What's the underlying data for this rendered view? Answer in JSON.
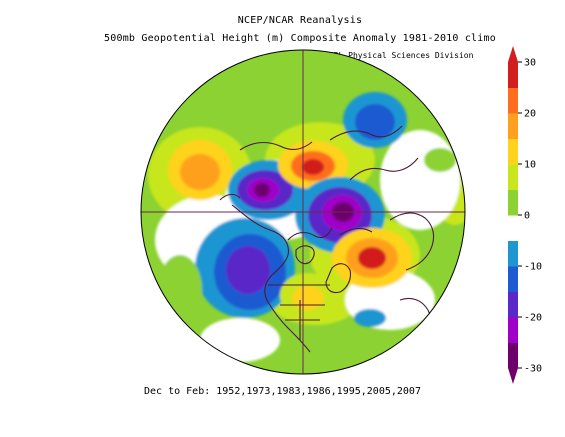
{
  "header": {
    "title_line1": "NCEP/NCAR Reanalysis",
    "title_line2": "500mb Geopotential Height (m) Composite Anomaly 1981-2010 climo",
    "credit": "NOAA/ESRL Physical Sciences Division"
  },
  "footer": {
    "caption": "Dec to Feb: 1952,1973,1983,1986,1995,2005,2007"
  },
  "colorbar": {
    "tick_labels": [
      "30",
      "20",
      "10",
      "0",
      "-10",
      "-20",
      "-30"
    ],
    "units": "m",
    "range": [
      -30,
      30
    ],
    "colors": [
      "#6e006e",
      "#a000c8",
      "#5a28c8",
      "#1e5ad2",
      "#1e96d2",
      "#ffffff",
      "#8cd232",
      "#c8e61e",
      "#ffd21e",
      "#ffa01e",
      "#ff6e1e",
      "#d21e1e"
    ]
  },
  "map": {
    "projection": "north-polar-stereographic",
    "variable": "500mb geopotential height anomaly",
    "anomaly_centers": [
      {
        "region": "North Pacific",
        "sign": "positive"
      },
      {
        "region": "Gulf of Alaska / NE Pacific",
        "sign": "negative"
      },
      {
        "region": "Bering Strait / Chukchi",
        "sign": "negative"
      },
      {
        "region": "East Siberia",
        "sign": "positive"
      },
      {
        "region": "Arctic Ocean / Barents-Kara",
        "sign": "negative"
      },
      {
        "region": "Central Asia / Mongolia",
        "sign": "negative"
      },
      {
        "region": "North Atlantic / Western Europe",
        "sign": "positive"
      },
      {
        "region": "Eastern United States",
        "sign": "positive"
      },
      {
        "region": "Subtropical Atlantic",
        "sign": "negative"
      }
    ]
  }
}
